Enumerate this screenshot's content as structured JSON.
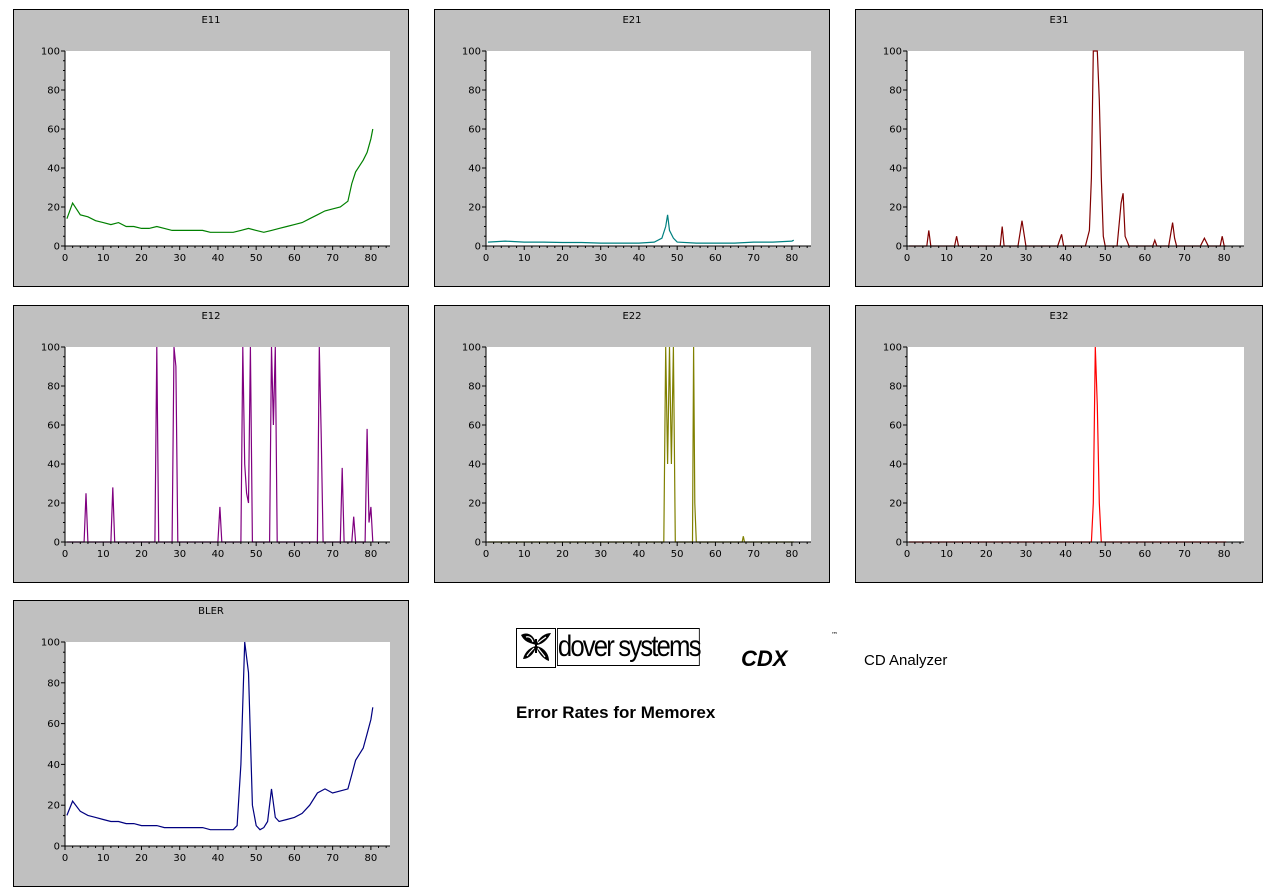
{
  "brand": {
    "logo_text": "dover systems",
    "logo_icon": "butterfly-icon",
    "product": "CDX",
    "trademark": "™",
    "product_desc": "CD Analyzer"
  },
  "report_title": "Error Rates for Memorex",
  "chart_data": [
    {
      "id": "e11",
      "type": "line",
      "title": "E11",
      "color": "#008000",
      "xlim": [
        0,
        85
      ],
      "ylim": [
        0,
        100
      ],
      "xticks": [
        0,
        10,
        20,
        30,
        40,
        50,
        60,
        70,
        80
      ],
      "yticks": [
        0,
        20,
        40,
        60,
        80,
        100
      ],
      "points": [
        [
          0.5,
          14
        ],
        [
          2,
          22
        ],
        [
          4,
          16
        ],
        [
          6,
          15
        ],
        [
          8,
          13
        ],
        [
          10,
          12
        ],
        [
          12,
          11
        ],
        [
          14,
          12
        ],
        [
          16,
          10
        ],
        [
          18,
          10
        ],
        [
          20,
          9
        ],
        [
          22,
          9
        ],
        [
          24,
          10
        ],
        [
          26,
          9
        ],
        [
          28,
          8
        ],
        [
          30,
          8
        ],
        [
          32,
          8
        ],
        [
          34,
          8
        ],
        [
          36,
          8
        ],
        [
          38,
          7
        ],
        [
          40,
          7
        ],
        [
          42,
          7
        ],
        [
          44,
          7
        ],
        [
          46,
          8
        ],
        [
          48,
          9
        ],
        [
          50,
          8
        ],
        [
          52,
          7
        ],
        [
          54,
          8
        ],
        [
          56,
          9
        ],
        [
          58,
          10
        ],
        [
          60,
          11
        ],
        [
          62,
          12
        ],
        [
          64,
          14
        ],
        [
          66,
          16
        ],
        [
          68,
          18
        ],
        [
          70,
          19
        ],
        [
          72,
          20
        ],
        [
          74,
          23
        ],
        [
          75,
          32
        ],
        [
          76,
          38
        ],
        [
          77,
          41
        ],
        [
          78,
          44
        ],
        [
          79,
          48
        ],
        [
          80,
          55
        ],
        [
          80.5,
          60
        ]
      ]
    },
    {
      "id": "e21",
      "type": "line",
      "title": "E21",
      "color": "#008080",
      "xlim": [
        0,
        85
      ],
      "ylim": [
        0,
        100
      ],
      "xticks": [
        0,
        10,
        20,
        30,
        40,
        50,
        60,
        70,
        80
      ],
      "yticks": [
        0,
        20,
        40,
        60,
        80,
        100
      ],
      "points": [
        [
          0.5,
          2
        ],
        [
          5,
          2.5
        ],
        [
          10,
          2
        ],
        [
          15,
          2
        ],
        [
          20,
          1.8
        ],
        [
          25,
          1.8
        ],
        [
          30,
          1.5
        ],
        [
          35,
          1.5
        ],
        [
          40,
          1.5
        ],
        [
          44,
          2
        ],
        [
          46,
          4
        ],
        [
          47,
          10
        ],
        [
          47.5,
          16
        ],
        [
          48,
          8
        ],
        [
          49,
          4
        ],
        [
          50,
          2
        ],
        [
          55,
          1.5
        ],
        [
          60,
          1.5
        ],
        [
          65,
          1.5
        ],
        [
          70,
          2
        ],
        [
          75,
          2
        ],
        [
          80,
          2.5
        ],
        [
          80.5,
          3
        ]
      ]
    },
    {
      "id": "e31",
      "type": "line",
      "title": "E31",
      "color": "#800000",
      "xlim": [
        0,
        85
      ],
      "ylim": [
        0,
        100
      ],
      "xticks": [
        0,
        10,
        20,
        30,
        40,
        50,
        60,
        70,
        80
      ],
      "yticks": [
        0,
        20,
        40,
        60,
        80,
        100
      ],
      "points": [
        [
          0.5,
          0
        ],
        [
          5,
          0
        ],
        [
          5.5,
          8
        ],
        [
          6,
          0
        ],
        [
          12,
          0
        ],
        [
          12.5,
          5
        ],
        [
          13,
          0
        ],
        [
          23.5,
          0
        ],
        [
          24,
          10
        ],
        [
          24.5,
          0
        ],
        [
          28,
          0
        ],
        [
          29,
          13
        ],
        [
          30,
          0
        ],
        [
          38,
          0
        ],
        [
          39,
          6
        ],
        [
          39.5,
          0
        ],
        [
          45,
          0
        ],
        [
          46,
          8
        ],
        [
          46.5,
          35
        ],
        [
          47,
          100
        ],
        [
          48,
          100
        ],
        [
          48.5,
          75
        ],
        [
          49,
          35
        ],
        [
          49.5,
          5
        ],
        [
          50,
          0
        ],
        [
          53,
          0
        ],
        [
          54,
          22
        ],
        [
          54.5,
          27
        ],
        [
          55,
          5
        ],
        [
          56,
          0
        ],
        [
          62,
          0
        ],
        [
          62.5,
          3
        ],
        [
          63,
          0
        ],
        [
          66,
          0
        ],
        [
          67,
          12
        ],
        [
          67.5,
          4
        ],
        [
          68,
          0
        ],
        [
          74,
          0
        ],
        [
          75,
          4
        ],
        [
          76,
          0
        ],
        [
          79,
          0
        ],
        [
          79.5,
          5
        ],
        [
          80,
          0
        ],
        [
          80.5,
          0
        ]
      ]
    },
    {
      "id": "e12",
      "type": "line",
      "title": "E12",
      "color": "#800080",
      "xlim": [
        0,
        85
      ],
      "ylim": [
        0,
        100
      ],
      "xticks": [
        0,
        10,
        20,
        30,
        40,
        50,
        60,
        70,
        80
      ],
      "yticks": [
        0,
        20,
        40,
        60,
        80,
        100
      ],
      "points": [
        [
          0.5,
          0
        ],
        [
          5,
          0
        ],
        [
          5.5,
          25
        ],
        [
          6,
          0
        ],
        [
          12,
          0
        ],
        [
          12.5,
          28
        ],
        [
          13,
          0
        ],
        [
          23.5,
          0
        ],
        [
          24,
          100
        ],
        [
          24.5,
          0
        ],
        [
          28,
          0
        ],
        [
          28.5,
          100
        ],
        [
          29,
          90
        ],
        [
          29.5,
          0
        ],
        [
          40,
          0
        ],
        [
          40.5,
          18
        ],
        [
          41,
          0
        ],
        [
          46,
          0
        ],
        [
          46.5,
          100
        ],
        [
          47,
          40
        ],
        [
          47.5,
          25
        ],
        [
          48,
          20
        ],
        [
          48.5,
          100
        ],
        [
          49,
          0
        ],
        [
          53.5,
          0
        ],
        [
          54,
          100
        ],
        [
          54.5,
          60
        ],
        [
          55,
          100
        ],
        [
          55.5,
          0
        ],
        [
          66,
          0
        ],
        [
          66.5,
          100
        ],
        [
          67,
          55
        ],
        [
          67.5,
          0
        ],
        [
          72,
          0
        ],
        [
          72.5,
          38
        ],
        [
          73,
          0
        ],
        [
          75,
          0
        ],
        [
          75.5,
          13
        ],
        [
          76,
          0
        ],
        [
          78.5,
          0
        ],
        [
          79,
          58
        ],
        [
          79.5,
          10
        ],
        [
          80,
          18
        ],
        [
          80.5,
          0
        ]
      ]
    },
    {
      "id": "e22",
      "type": "line",
      "title": "E22",
      "color": "#808000",
      "xlim": [
        0,
        85
      ],
      "ylim": [
        0,
        100
      ],
      "xticks": [
        0,
        10,
        20,
        30,
        40,
        50,
        60,
        70,
        80
      ],
      "yticks": [
        0,
        20,
        40,
        60,
        80,
        100
      ],
      "points": [
        [
          0.5,
          0
        ],
        [
          46.5,
          0
        ],
        [
          47,
          100
        ],
        [
          47.5,
          40
        ],
        [
          48,
          100
        ],
        [
          48.5,
          40
        ],
        [
          49,
          100
        ],
        [
          49.5,
          0
        ],
        [
          54,
          0
        ],
        [
          54.3,
          100
        ],
        [
          54.6,
          20
        ],
        [
          55,
          0
        ],
        [
          67,
          0
        ],
        [
          67.3,
          3
        ],
        [
          67.6,
          0
        ],
        [
          80.5,
          0
        ]
      ]
    },
    {
      "id": "e32",
      "type": "line",
      "title": "E32",
      "color": "#ff0000",
      "xlim": [
        0,
        85
      ],
      "ylim": [
        0,
        100
      ],
      "xticks": [
        0,
        10,
        20,
        30,
        40,
        50,
        60,
        70,
        80
      ],
      "yticks": [
        0,
        20,
        40,
        60,
        80,
        100
      ],
      "points": [
        [
          0.5,
          0
        ],
        [
          46.5,
          0
        ],
        [
          47,
          20
        ],
        [
          47.5,
          100
        ],
        [
          48,
          70
        ],
        [
          48.5,
          20
        ],
        [
          49,
          0
        ],
        [
          80.5,
          0
        ]
      ]
    },
    {
      "id": "bler",
      "type": "line",
      "title": "BLER",
      "color": "#000080",
      "xlim": [
        0,
        85
      ],
      "ylim": [
        0,
        100
      ],
      "xticks": [
        0,
        10,
        20,
        30,
        40,
        50,
        60,
        70,
        80
      ],
      "yticks": [
        0,
        20,
        40,
        60,
        80,
        100
      ],
      "points": [
        [
          0.5,
          15
        ],
        [
          2,
          22
        ],
        [
          4,
          17
        ],
        [
          6,
          15
        ],
        [
          8,
          14
        ],
        [
          10,
          13
        ],
        [
          12,
          12
        ],
        [
          14,
          12
        ],
        [
          16,
          11
        ],
        [
          18,
          11
        ],
        [
          20,
          10
        ],
        [
          22,
          10
        ],
        [
          24,
          10
        ],
        [
          26,
          9
        ],
        [
          28,
          9
        ],
        [
          30,
          9
        ],
        [
          32,
          9
        ],
        [
          34,
          9
        ],
        [
          36,
          9
        ],
        [
          38,
          8
        ],
        [
          40,
          8
        ],
        [
          42,
          8
        ],
        [
          44,
          8
        ],
        [
          45,
          10
        ],
        [
          46,
          40
        ],
        [
          47,
          100
        ],
        [
          48,
          85
        ],
        [
          49,
          20
        ],
        [
          50,
          10
        ],
        [
          51,
          8
        ],
        [
          52,
          9
        ],
        [
          53,
          12
        ],
        [
          54,
          28
        ],
        [
          55,
          14
        ],
        [
          56,
          12
        ],
        [
          58,
          13
        ],
        [
          60,
          14
        ],
        [
          62,
          16
        ],
        [
          64,
          20
        ],
        [
          66,
          26
        ],
        [
          68,
          28
        ],
        [
          70,
          26
        ],
        [
          72,
          27
        ],
        [
          74,
          28
        ],
        [
          75,
          35
        ],
        [
          76,
          42
        ],
        [
          77,
          45
        ],
        [
          78,
          48
        ],
        [
          79,
          55
        ],
        [
          80,
          62
        ],
        [
          80.5,
          68
        ]
      ]
    }
  ]
}
